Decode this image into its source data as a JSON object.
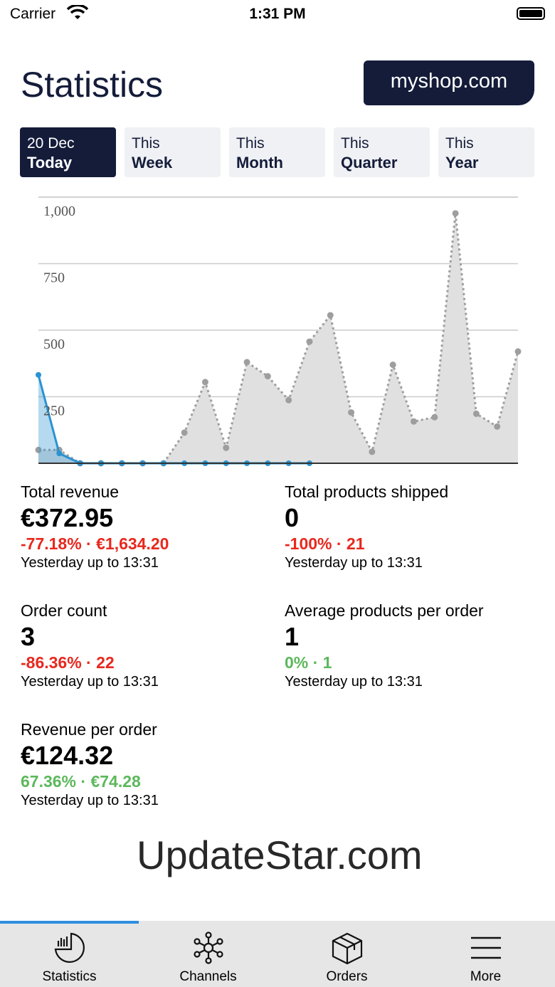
{
  "status": {
    "carrier": "Carrier",
    "time": "1:31 PM"
  },
  "header": {
    "title": "Statistics",
    "shop": "myshop.com"
  },
  "periods": [
    {
      "top": "20 Dec",
      "bottom": "Today",
      "active": true
    },
    {
      "top": "This",
      "bottom": "Week"
    },
    {
      "top": "This",
      "bottom": "Month"
    },
    {
      "top": "This",
      "bottom": "Quarter"
    },
    {
      "top": "This",
      "bottom": "Year"
    }
  ],
  "chart_data": {
    "type": "area",
    "ylim": [
      0,
      1000
    ],
    "yticks": [
      "250",
      "500",
      "750",
      "1,000"
    ],
    "ytick_values": [
      250,
      500,
      750,
      1000
    ],
    "grid": true,
    "series": [
      {
        "color": "#9e9e9e",
        "style": "dotted",
        "values": [
          50,
          50,
          0,
          0,
          0,
          0,
          0,
          115,
          305,
          58,
          380,
          327,
          237,
          457,
          556,
          191,
          43,
          370,
          157,
          173,
          939,
          186,
          138,
          420
        ]
      },
      {
        "color": "#2a93d0",
        "style": "solid",
        "values": [
          332,
          37,
          0,
          0,
          0,
          0,
          0,
          0,
          0,
          0,
          0,
          0,
          0,
          0
        ]
      }
    ]
  },
  "metrics": [
    {
      "label": "Total revenue",
      "value": "€372.95",
      "change": "-77.18% · €1,634.20",
      "trend": "down",
      "sub": "Yesterday up to 13:31"
    },
    {
      "label": "Total products shipped",
      "value": "0",
      "change": "-100% · 21",
      "trend": "down",
      "sub": "Yesterday up to 13:31"
    },
    {
      "label": "Order count",
      "value": "3",
      "change": "-86.36% · 22",
      "trend": "down",
      "sub": "Yesterday up to 13:31"
    },
    {
      "label": "Average products per order",
      "value": "1",
      "change": "0% · 1",
      "trend": "up",
      "sub": "Yesterday up to 13:31"
    },
    {
      "label": "Revenue per order",
      "value": "€124.32",
      "change": "67.36% · €74.28",
      "trend": "up",
      "sub": "Yesterday up to 13:31"
    }
  ],
  "watermark": "UpdateStar.com",
  "tabs": [
    {
      "label": "Statistics",
      "icon": "statistics-icon"
    },
    {
      "label": "Channels",
      "icon": "channels-icon"
    },
    {
      "label": "Orders",
      "icon": "box-icon"
    },
    {
      "label": "More",
      "icon": "menu-icon"
    }
  ]
}
